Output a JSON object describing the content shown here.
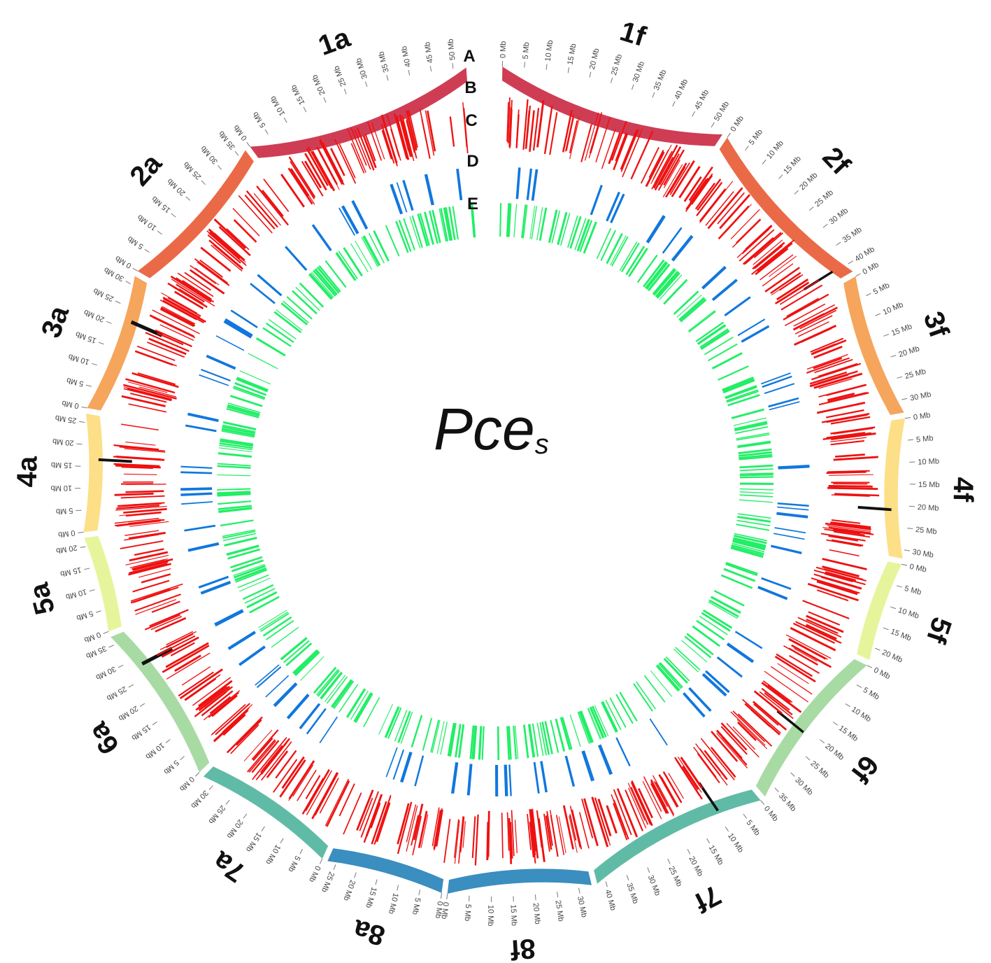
{
  "center_label": {
    "main": "Pce",
    "sub": "s"
  },
  "track_letters": [
    "A",
    "B",
    "C",
    "D",
    "E"
  ],
  "tick_unit": "Mb",
  "chromosomes": [
    {
      "label": "1a",
      "length": 53,
      "color": "#cf3d55",
      "reversed": true
    },
    {
      "label": "2a",
      "length": 37,
      "color": "#ea6a48",
      "reversed": true
    },
    {
      "label": "3a",
      "length": 32,
      "color": "#f6a55c",
      "reversed": true
    },
    {
      "label": "4a",
      "length": 27,
      "color": "#fddf88",
      "reversed": true
    },
    {
      "label": "5a",
      "length": 22,
      "color": "#e6f59c",
      "reversed": true
    },
    {
      "label": "6a",
      "length": 37,
      "color": "#a8dba4",
      "reversed": true
    },
    {
      "label": "7a",
      "length": 33,
      "color": "#60bba6",
      "reversed": true
    },
    {
      "label": "8a",
      "length": 27,
      "color": "#3a8ec0",
      "reversed": true
    },
    {
      "label": "8f",
      "length": 33,
      "color": "#3a8ec0",
      "reversed": false
    },
    {
      "label": "7f",
      "length": 42,
      "color": "#60bba6",
      "reversed": true
    },
    {
      "label": "6f",
      "length": 38,
      "color": "#a8dba4",
      "reversed": true
    },
    {
      "label": "5f",
      "length": 23,
      "color": "#e6f59c",
      "reversed": true
    },
    {
      "label": "4f",
      "length": 32,
      "color": "#fddf88",
      "reversed": true
    },
    {
      "label": "3f",
      "length": 33,
      "color": "#f6a55c",
      "reversed": true
    },
    {
      "label": "2f",
      "length": 42,
      "color": "#ea6a48",
      "reversed": true
    },
    {
      "label": "1f",
      "length": 53,
      "color": "#cf3d55",
      "reversed": true
    }
  ],
  "track_colors": {
    "B": "#111111",
    "C": "#ee1111",
    "D": "#1177dd",
    "E": "#22ee66"
  }
}
